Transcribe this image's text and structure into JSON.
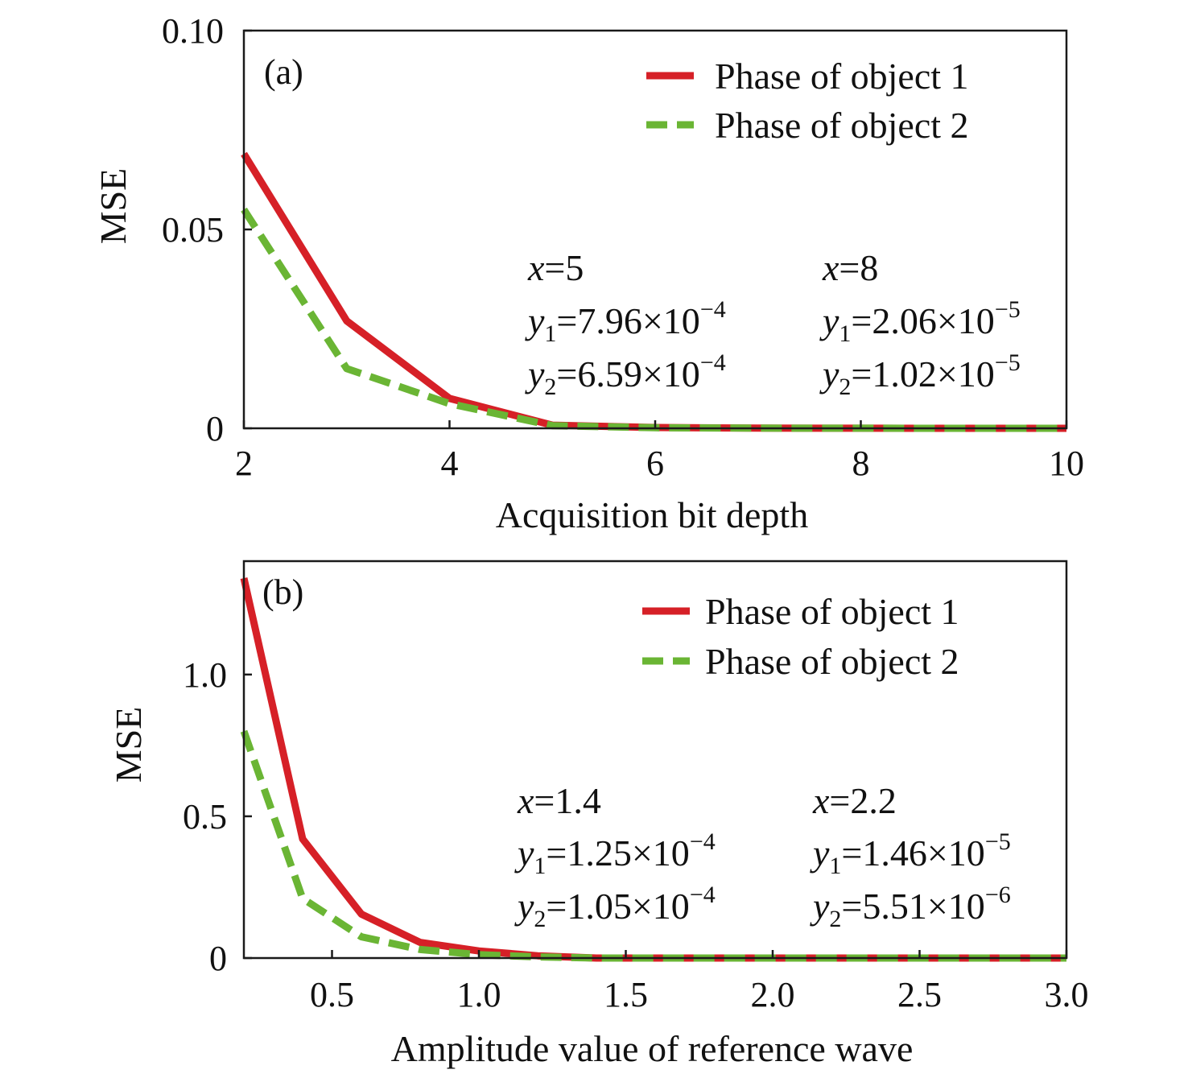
{
  "chart_data": [
    {
      "type": "line",
      "panel_label": "(a)",
      "xlabel": "Acquisition bit depth",
      "ylabel": "MSE",
      "xlim": [
        2,
        10
      ],
      "ylim": [
        0,
        0.1
      ],
      "xticks": [
        2,
        4,
        6,
        8,
        10
      ],
      "xtick_labels": [
        "2",
        "4",
        "6",
        "8",
        "10"
      ],
      "yticks": [
        0,
        0.05,
        0.1
      ],
      "ytick_labels": [
        "0",
        "0.05",
        "0.10"
      ],
      "x": [
        2,
        3,
        4,
        5,
        6,
        7,
        8,
        9,
        10
      ],
      "series": [
        {
          "name": "Phase of object 1",
          "color": "#d62027",
          "style": "solid",
          "values": [
            0.069,
            0.027,
            0.0075,
            0.000796,
            0.0002,
            5e-05,
            2.06e-05,
            8e-06,
            4e-06
          ]
        },
        {
          "name": "Phase of object 2",
          "color": "#6ab534",
          "style": "dashed",
          "values": [
            0.055,
            0.015,
            0.0062,
            0.000659,
            0.00015,
            4e-05,
            1.02e-05,
            5e-06,
            3e-06
          ]
        }
      ],
      "legend_position": "top-right",
      "annotations": [
        {
          "x_text": "x",
          "x_value": "=5",
          "y1_text": "y",
          "y1_sub": "1",
          "y1_value": "=7.96×10",
          "y1_exp": "−4",
          "y2_text": "y",
          "y2_sub": "2",
          "y2_value": "=6.59×10",
          "y2_exp": "−4"
        },
        {
          "x_text": "x",
          "x_value": "=8",
          "y1_text": "y",
          "y1_sub": "1",
          "y1_value": "=2.06×10",
          "y1_exp": "−5",
          "y2_text": "y",
          "y2_sub": "2",
          "y2_value": "=1.02×10",
          "y2_exp": "−5"
        }
      ]
    },
    {
      "type": "line",
      "panel_label": "(b)",
      "xlabel": "Amplitude value of reference wave",
      "ylabel": "MSE",
      "xlim": [
        0.2,
        3.0
      ],
      "ylim": [
        0,
        1.4
      ],
      "xticks": [
        0.5,
        1.0,
        1.5,
        2.0,
        2.5,
        3.0
      ],
      "xtick_labels": [
        "0.5",
        "1.0",
        "1.5",
        "2.0",
        "2.5",
        "3.0"
      ],
      "yticks": [
        0,
        0.5,
        1.0
      ],
      "ytick_labels": [
        "0",
        "0.5",
        "1.0"
      ],
      "x": [
        0.2,
        0.4,
        0.6,
        0.8,
        1.0,
        1.2,
        1.4,
        1.6,
        1.8,
        2.0,
        2.2,
        2.4,
        2.6,
        2.8,
        3.0
      ],
      "series": [
        {
          "name": "Phase of object 1",
          "color": "#d62027",
          "style": "solid",
          "values": [
            1.34,
            0.42,
            0.155,
            0.055,
            0.025,
            0.008,
            0.000125,
            0.0001,
            5e-05,
            2e-05,
            1.46e-05,
            1e-05,
            1e-05,
            1e-05,
            1e-05
          ]
        },
        {
          "name": "Phase of object 2",
          "color": "#6ab534",
          "style": "dashed",
          "values": [
            0.8,
            0.21,
            0.075,
            0.03,
            0.012,
            0.004,
            0.000105,
            8e-05,
            4e-05,
            1e-05,
            5.51e-06,
            5e-06,
            5e-06,
            5e-06,
            5e-06
          ]
        }
      ],
      "legend_position": "top-right",
      "annotations": [
        {
          "x_text": "x",
          "x_value": "=1.4",
          "y1_text": "y",
          "y1_sub": "1",
          "y1_value": "=1.25×10",
          "y1_exp": "−4",
          "y2_text": "y",
          "y2_sub": "2",
          "y2_value": "=1.05×10",
          "y2_exp": "−4"
        },
        {
          "x_text": "x",
          "x_value": "=2.2",
          "y1_text": "y",
          "y1_sub": "1",
          "y1_value": "=1.46×10",
          "y1_exp": "−5",
          "y2_text": "y",
          "y2_sub": "2",
          "y2_value": "=5.51×10",
          "y2_exp": "−6"
        }
      ]
    }
  ]
}
